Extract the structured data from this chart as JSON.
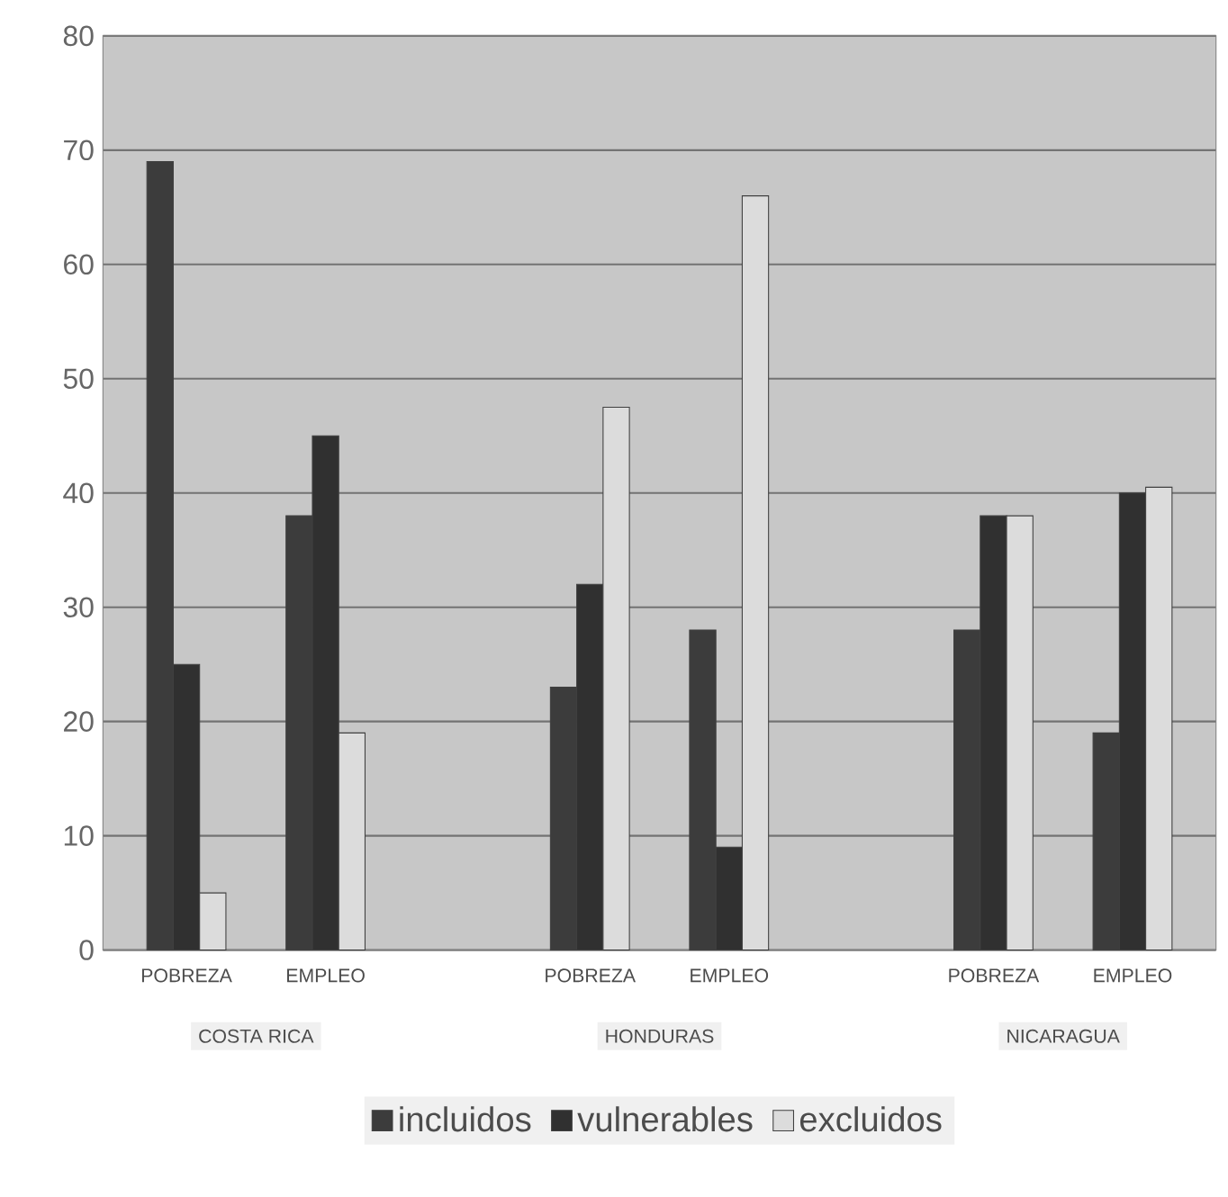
{
  "chart_data": {
    "type": "bar",
    "categories": [
      "POBREZA",
      "EMPLEO",
      "POBREZA",
      "EMPLEO",
      "POBREZA",
      "EMPLEO"
    ],
    "series": [
      {
        "name": "incluidos",
        "color": "#3c3c3c",
        "values": [
          69,
          38,
          23,
          28,
          28,
          19
        ]
      },
      {
        "name": "vulnerables",
        "color": "#303030",
        "values": [
          25,
          45,
          32,
          9,
          38,
          40
        ]
      },
      {
        "name": "excluidos",
        "color": "#dcdcdc",
        "values": [
          5,
          19,
          47.5,
          66,
          38,
          40.5
        ]
      }
    ],
    "annotations": [
      "COSTA RICA",
      "HONDURAS",
      "NICARAGUA"
    ],
    "ylim": [
      0,
      80
    ],
    "yticks": [
      0,
      10,
      20,
      30,
      40,
      50,
      60,
      70,
      80
    ],
    "grid": "y",
    "legend": "bottom"
  }
}
